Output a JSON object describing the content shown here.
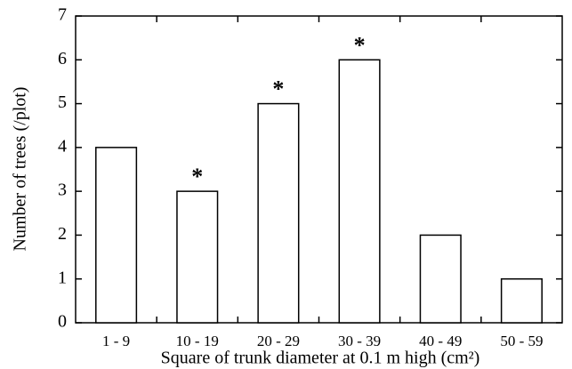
{
  "chart_data": {
    "type": "bar",
    "xlabel": "Square of trunk diameter at 0.1 m high (cm²)",
    "ylabel": "Number of trees (/plot)",
    "categories": [
      "1 - 9",
      "10 - 19",
      "20 - 29",
      "30 - 39",
      "40 - 49",
      "50 - 59"
    ],
    "values": [
      4,
      3,
      5,
      6,
      2,
      1
    ],
    "annotations": [
      null,
      "*",
      "*",
      "*",
      null,
      null
    ],
    "color": "#ffffff",
    "ylim": [
      0,
      7
    ],
    "yticks": [
      0,
      1,
      2,
      3,
      4,
      5,
      6,
      7
    ],
    "grid": false
  }
}
